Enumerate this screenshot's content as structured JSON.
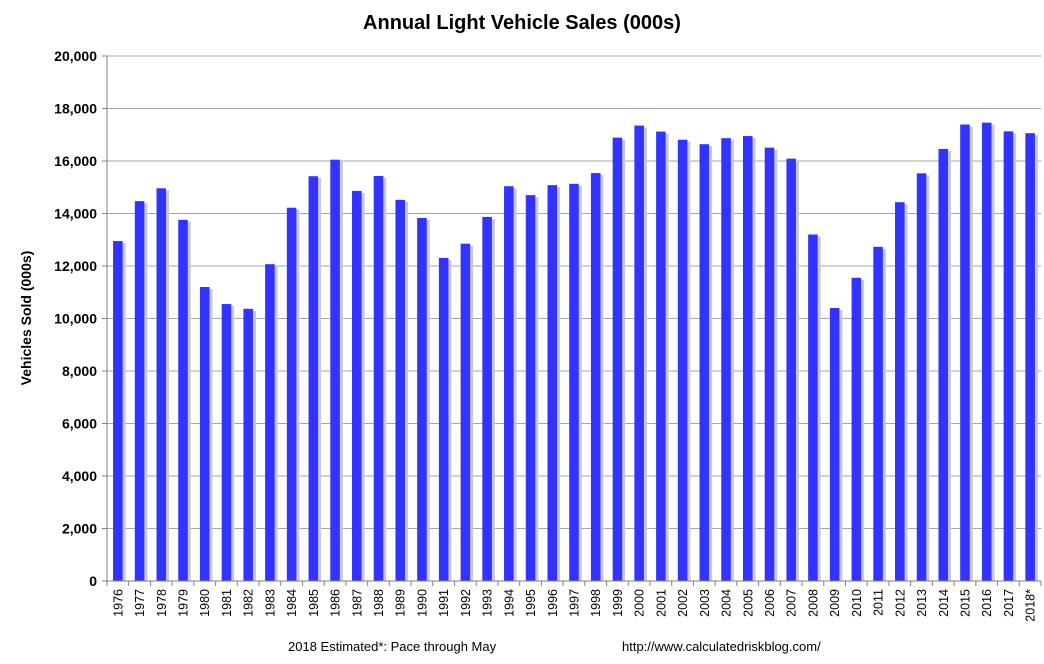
{
  "chart_data": {
    "type": "bar",
    "title": "Annual Light Vehicle Sales  (000s)",
    "xlabel": "",
    "ylabel": "Vehicles Sold (000s)",
    "ylim": [
      0,
      20000
    ],
    "yticks": [
      "0",
      "2,000",
      "4,000",
      "6,000",
      "8,000",
      "10,000",
      "12,000",
      "14,000",
      "16,000",
      "18,000",
      "20,000"
    ],
    "grid": true,
    "bar_color": "#3333ff",
    "categories": [
      "1976",
      "1977",
      "1978",
      "1979",
      "1980",
      "1981",
      "1982",
      "1983",
      "1984",
      "1985",
      "1986",
      "1987",
      "1988",
      "1989",
      "1990",
      "1991",
      "1992",
      "1993",
      "1994",
      "1995",
      "1996",
      "1997",
      "1998",
      "1999",
      "2000",
      "2001",
      "2002",
      "2003",
      "2004",
      "2005",
      "2006",
      "2007",
      "2008",
      "2009",
      "2010",
      "2011",
      "2012",
      "2013",
      "2014",
      "2015",
      "2016",
      "2017",
      "2018*"
    ],
    "values": [
      12950,
      14470,
      14960,
      13760,
      11200,
      10550,
      10370,
      12070,
      14220,
      15420,
      16050,
      14860,
      15430,
      14520,
      13830,
      12310,
      12850,
      13870,
      15040,
      14700,
      15080,
      15130,
      15540,
      16890,
      17350,
      17120,
      16810,
      16640,
      16870,
      16950,
      16510,
      16090,
      13200,
      10400,
      11550,
      12730,
      14430,
      15530,
      16460,
      17390,
      17460,
      17130,
      17060
    ]
  },
  "footer": {
    "note": "2018 Estimated*: Pace through May",
    "source": "http://www.calculatedriskblog.com/"
  }
}
